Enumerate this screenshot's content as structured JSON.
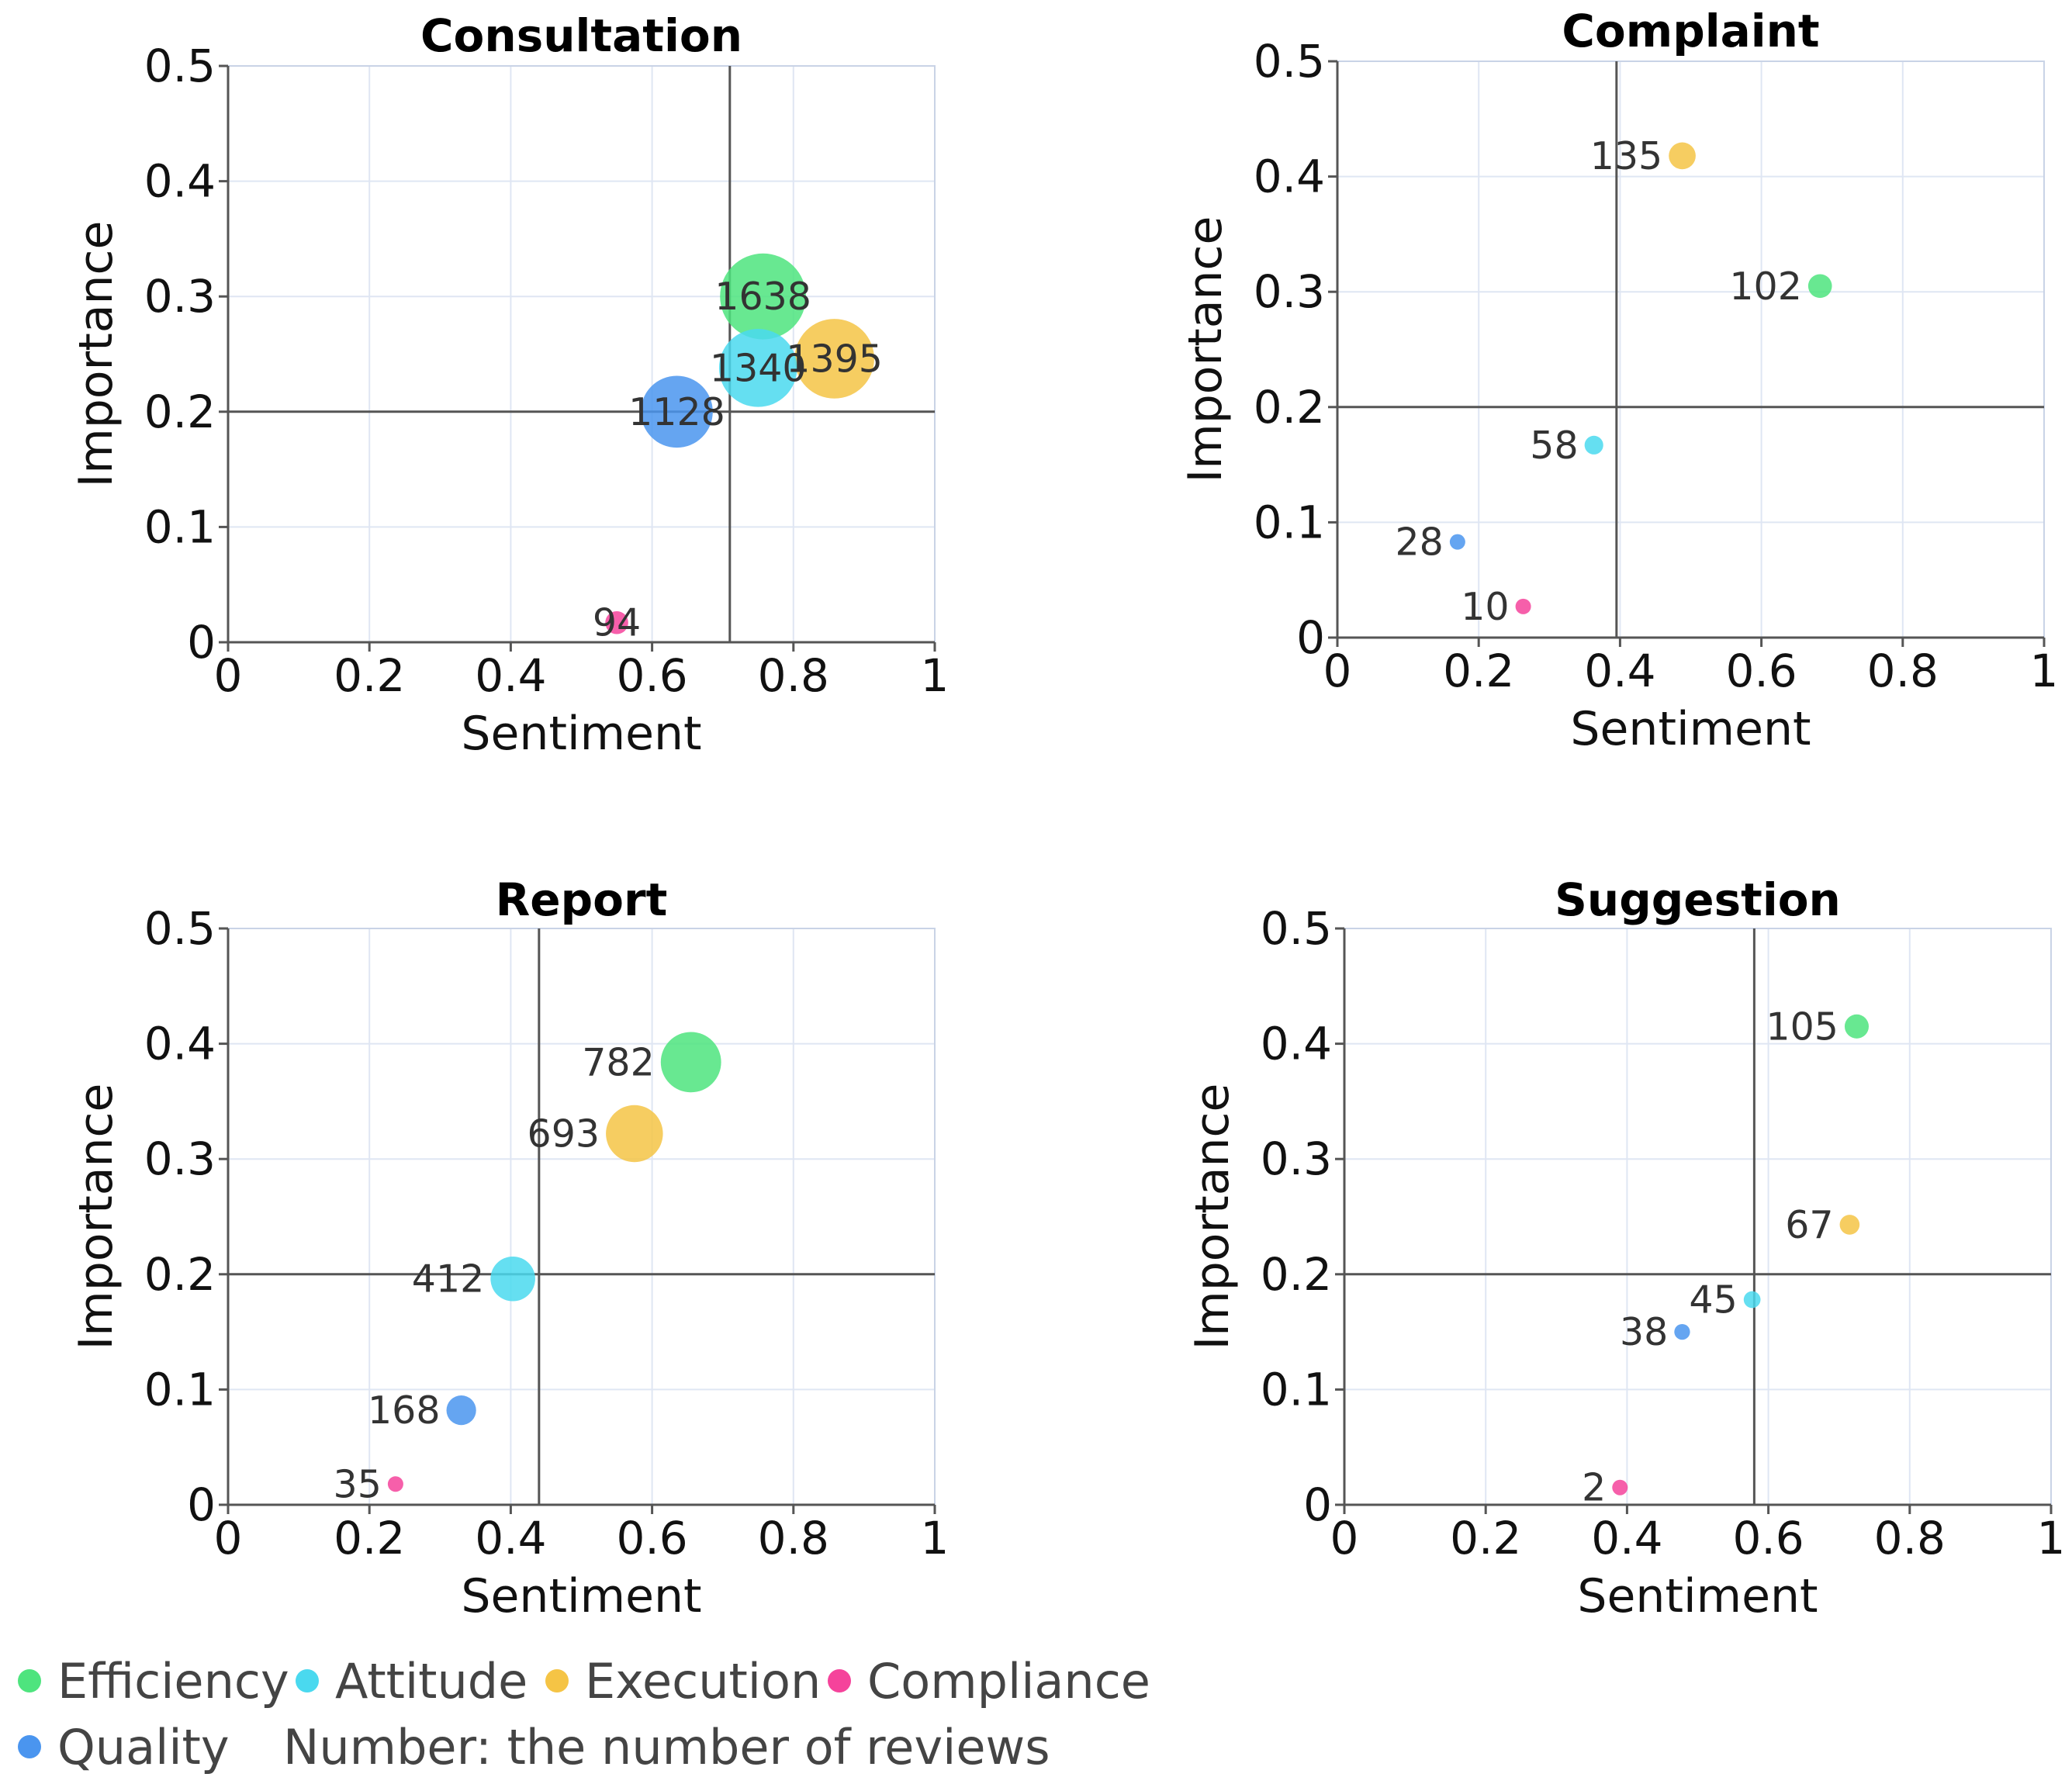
{
  "chart_data": [
    {
      "type": "scatter",
      "title": "Consultation",
      "xlabel": "Sentiment",
      "ylabel": "Importance",
      "xlim": [
        0,
        1
      ],
      "ylim": [
        0,
        0.5
      ],
      "xticks": [
        "0",
        "0.2",
        "0.4",
        "0.6",
        "0.8",
        "1"
      ],
      "yticks": [
        "0",
        "0.1",
        "0.2",
        "0.3",
        "0.4",
        "0.5"
      ],
      "ref_x": 0.71,
      "ref_y": 0.2,
      "points": [
        {
          "series": "Compliance",
          "x": 0.55,
          "y": 0.017,
          "count": 94,
          "label": "94"
        },
        {
          "series": "Quality",
          "x": 0.635,
          "y": 0.2,
          "count": 1128,
          "label": "1128"
        },
        {
          "series": "Execution",
          "x": 0.858,
          "y": 0.246,
          "count": 1395,
          "label": "1395"
        },
        {
          "series": "Attitude",
          "x": 0.75,
          "y": 0.238,
          "count": 1340,
          "label": "1340"
        },
        {
          "series": "Efficiency",
          "x": 0.757,
          "y": 0.3,
          "count": 1638,
          "label": "1638"
        }
      ]
    },
    {
      "type": "scatter",
      "title": "Complaint",
      "xlabel": "Sentiment",
      "ylabel": "Importance",
      "xlim": [
        0,
        1
      ],
      "ylim": [
        0,
        0.5
      ],
      "xticks": [
        "0",
        "0.2",
        "0.4",
        "0.6",
        "0.8",
        "1"
      ],
      "yticks": [
        "0",
        "0.1",
        "0.2",
        "0.3",
        "0.4",
        "0.5"
      ],
      "ref_x": 0.395,
      "ref_y": 0.2,
      "points": [
        {
          "series": "Execution",
          "x": 0.488,
          "y": 0.418,
          "count": 135,
          "label": "135"
        },
        {
          "series": "Efficiency",
          "x": 0.683,
          "y": 0.305,
          "count": 102,
          "label": "102"
        },
        {
          "series": "Attitude",
          "x": 0.363,
          "y": 0.167,
          "count": 58,
          "label": "58"
        },
        {
          "series": "Quality",
          "x": 0.17,
          "y": 0.083,
          "count": 28,
          "label": "28"
        },
        {
          "series": "Compliance",
          "x": 0.263,
          "y": 0.027,
          "count": 10,
          "label": "10"
        }
      ]
    },
    {
      "type": "scatter",
      "title": "Report",
      "xlabel": "Sentiment",
      "ylabel": "Importance",
      "xlim": [
        0,
        1
      ],
      "ylim": [
        0,
        0.5
      ],
      "xticks": [
        "0",
        "0.2",
        "0.4",
        "0.6",
        "0.8",
        "1"
      ],
      "yticks": [
        "0",
        "0.1",
        "0.2",
        "0.3",
        "0.4",
        "0.5"
      ],
      "ref_x": 0.44,
      "ref_y": 0.2,
      "points": [
        {
          "series": "Efficiency",
          "x": 0.655,
          "y": 0.384,
          "count": 782,
          "label": "782"
        },
        {
          "series": "Execution",
          "x": 0.575,
          "y": 0.322,
          "count": 693,
          "label": "693"
        },
        {
          "series": "Attitude",
          "x": 0.403,
          "y": 0.196,
          "count": 412,
          "label": "412"
        },
        {
          "series": "Quality",
          "x": 0.33,
          "y": 0.082,
          "count": 168,
          "label": "168"
        },
        {
          "series": "Compliance",
          "x": 0.237,
          "y": 0.018,
          "count": 35,
          "label": "35"
        }
      ]
    },
    {
      "type": "scatter",
      "title": "Suggestion",
      "xlabel": "Sentiment",
      "ylabel": "Importance",
      "xlim": [
        0,
        1
      ],
      "ylim": [
        0,
        0.5
      ],
      "xticks": [
        "0",
        "0.2",
        "0.4",
        "0.6",
        "0.8",
        "1"
      ],
      "yticks": [
        "0",
        "0.1",
        "0.2",
        "0.3",
        "0.4",
        "0.5"
      ],
      "ref_x": 0.58,
      "ref_y": 0.2,
      "points": [
        {
          "series": "Efficiency",
          "x": 0.725,
          "y": 0.415,
          "count": 105,
          "label": "105"
        },
        {
          "series": "Execution",
          "x": 0.715,
          "y": 0.243,
          "count": 67,
          "label": "67"
        },
        {
          "series": "Attitude",
          "x": 0.577,
          "y": 0.178,
          "count": 45,
          "label": "45"
        },
        {
          "series": "Quality",
          "x": 0.478,
          "y": 0.15,
          "count": 38,
          "label": "38"
        },
        {
          "series": "Compliance",
          "x": 0.39,
          "y": 0.015,
          "count": 2,
          "label": "2"
        }
      ]
    }
  ],
  "series_colors": {
    "Efficiency": "#4ee47e",
    "Attitude": "#4ad9ef",
    "Execution": "#f5c445",
    "Compliance": "#f5439b",
    "Quality": "#4a95ef"
  },
  "legend": {
    "items": [
      "Efficiency",
      "Attitude",
      "Execution",
      "Compliance",
      "Quality"
    ],
    "note": "Number: the number of reviews"
  }
}
